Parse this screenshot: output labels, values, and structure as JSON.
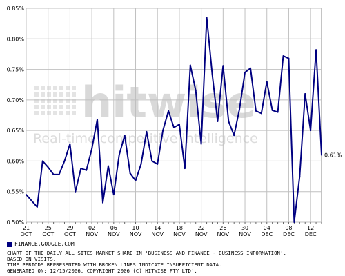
{
  "chart_data": {
    "type": "line",
    "title": "",
    "xlabel": "",
    "ylabel": "",
    "ylim": [
      0.5,
      0.85
    ],
    "y_ticks": [
      "0.50%",
      "0.55%",
      "0.60%",
      "0.65%",
      "0.70%",
      "0.75%",
      "0.80%",
      "0.85%"
    ],
    "x_ticks": [
      {
        "day": "21",
        "month": "OCT"
      },
      {
        "day": "25",
        "month": "OCT"
      },
      {
        "day": "29",
        "month": "OCT"
      },
      {
        "day": "02",
        "month": "NOV"
      },
      {
        "day": "06",
        "month": "NOV"
      },
      {
        "day": "10",
        "month": "NOV"
      },
      {
        "day": "14",
        "month": "NOV"
      },
      {
        "day": "18",
        "month": "NOV"
      },
      {
        "day": "22",
        "month": "NOV"
      },
      {
        "day": "26",
        "month": "NOV"
      },
      {
        "day": "30",
        "month": "NOV"
      },
      {
        "day": "04",
        "month": "DEC"
      },
      {
        "day": "08",
        "month": "DEC"
      },
      {
        "day": "12",
        "month": "DEC"
      }
    ],
    "grid": true,
    "line_color": "#000080",
    "end_label": "0.61%",
    "series": [
      {
        "name": "FINANCE.GOOGLE.COM",
        "x": [
          "10/21",
          "10/22",
          "10/23",
          "10/24",
          "10/25",
          "10/26",
          "10/27",
          "10/28",
          "10/29",
          "10/30",
          "10/31",
          "11/01",
          "11/02",
          "11/03",
          "11/04",
          "11/05",
          "11/06",
          "11/07",
          "11/08",
          "11/09",
          "11/10",
          "11/11",
          "11/12",
          "11/13",
          "11/14",
          "11/15",
          "11/16",
          "11/17",
          "11/18",
          "11/19",
          "11/20",
          "11/21",
          "11/22",
          "11/23",
          "11/24",
          "11/25",
          "11/26",
          "11/27",
          "11/28",
          "11/29",
          "11/30",
          "12/01",
          "12/02",
          "12/03",
          "12/04",
          "12/05",
          "12/06",
          "12/07",
          "12/08",
          "12/09",
          "12/10",
          "12/11",
          "12/12",
          "12/13",
          "12/14"
        ],
        "values": [
          0.545,
          0.535,
          0.525,
          0.6,
          0.59,
          0.578,
          0.578,
          0.6,
          0.628,
          0.55,
          0.588,
          0.585,
          0.62,
          0.668,
          0.532,
          0.592,
          0.545,
          0.61,
          0.642,
          0.58,
          0.568,
          0.595,
          0.648,
          0.6,
          0.595,
          0.65,
          0.682,
          0.655,
          0.66,
          0.588,
          0.757,
          0.715,
          0.628,
          0.835,
          0.743,
          0.665,
          0.756,
          0.665,
          0.642,
          0.685,
          0.745,
          0.752,
          0.682,
          0.678,
          0.73,
          0.683,
          0.68,
          0.772,
          0.768,
          0.5,
          0.575,
          0.71,
          0.65,
          0.782,
          0.61
        ]
      }
    ],
    "watermark": {
      "brand": "hitwise",
      "tagline": "Real-time competitive intelligence"
    }
  },
  "legend": {
    "label": "FINANCE.GOOGLE.COM",
    "color": "#000080"
  },
  "caption": {
    "text": "CHART OF THE DAILY ALL SITES MARKET SHARE IN 'BUSINESS AND FINANCE - BUSINESS INFORMATION',\nBASED ON VISITS.\nTIME PERIODS REPRESENTED WITH BROKEN LINES INDICATE INSUFFICIENT DATA.\nGENERATED ON: 12/15/2006. COPYRIGHT 2006 (C) HITWISE PTY LTD'."
  }
}
